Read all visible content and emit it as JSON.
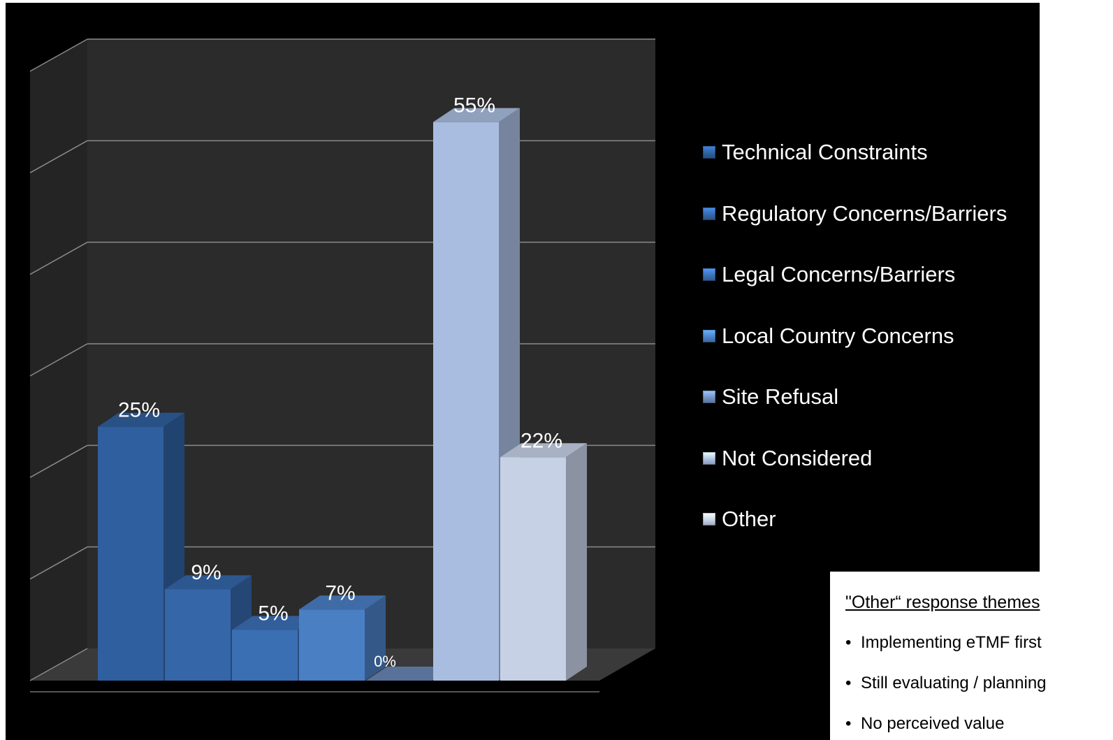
{
  "chart_data": {
    "type": "bar",
    "style": "3d-columns",
    "categories": [
      "Technical Constraints",
      "Regulatory Concerns/Barriers",
      "Legal Concerns/Barriers",
      "Local Country Concerns",
      "Site Refusal",
      "Not Considered",
      "Other"
    ],
    "values": [
      25,
      9,
      5,
      7,
      0,
      55,
      22
    ],
    "value_labels": [
      "25%",
      "9%",
      "5%",
      "7%",
      "0%",
      "55%",
      "22%"
    ],
    "ylim": [
      0,
      60
    ],
    "grid": true,
    "legend_position": "right",
    "colors": [
      "#2f5f9e",
      "#3566a8",
      "#3b6fb4",
      "#4a7fc4",
      "#6f8fbf",
      "#a9bde0",
      "#c6d1e6"
    ],
    "background": "#000000",
    "wall_color": "#2b2b2b",
    "label_color": "#ffffff"
  },
  "note": {
    "title": "\"Other“ response themes",
    "bullets": [
      "Implementing eTMF first",
      "Still evaluating / planning",
      "No perceived value"
    ]
  }
}
